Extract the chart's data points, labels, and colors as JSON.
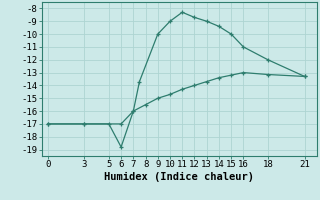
{
  "line1_x": [
    0,
    3,
    5,
    6,
    7,
    7.5,
    9,
    10,
    11,
    12,
    13,
    14,
    15,
    16,
    18,
    21
  ],
  "line1_y": [
    -17,
    -17,
    -17,
    -18.8,
    -16,
    -13.7,
    -10,
    -9,
    -8.3,
    -8.7,
    -9,
    -9.4,
    -10,
    -11,
    -12,
    -13.3
  ],
  "line2_x": [
    0,
    3,
    6,
    7,
    8,
    9,
    10,
    11,
    12,
    13,
    14,
    15,
    16,
    18,
    21
  ],
  "line2_y": [
    -17,
    -17,
    -17,
    -16,
    -15.5,
    -15,
    -14.7,
    -14.3,
    -14,
    -13.7,
    -13.4,
    -13.2,
    -13,
    -13.15,
    -13.3
  ],
  "line_color": "#2e7d6e",
  "bg_color": "#cce9e8",
  "grid_color": "#aed4d2",
  "xlabel": "Humidex (Indice chaleur)",
  "xlim": [
    -0.5,
    22
  ],
  "ylim": [
    -19.5,
    -7.5
  ],
  "xticks": [
    0,
    3,
    5,
    6,
    7,
    8,
    9,
    10,
    11,
    12,
    13,
    14,
    15,
    16,
    18,
    21
  ],
  "yticks": [
    -8,
    -9,
    -10,
    -11,
    -12,
    -13,
    -14,
    -15,
    -16,
    -17,
    -18,
    -19
  ],
  "tick_fontsize": 6.5,
  "xlabel_fontsize": 7.5
}
